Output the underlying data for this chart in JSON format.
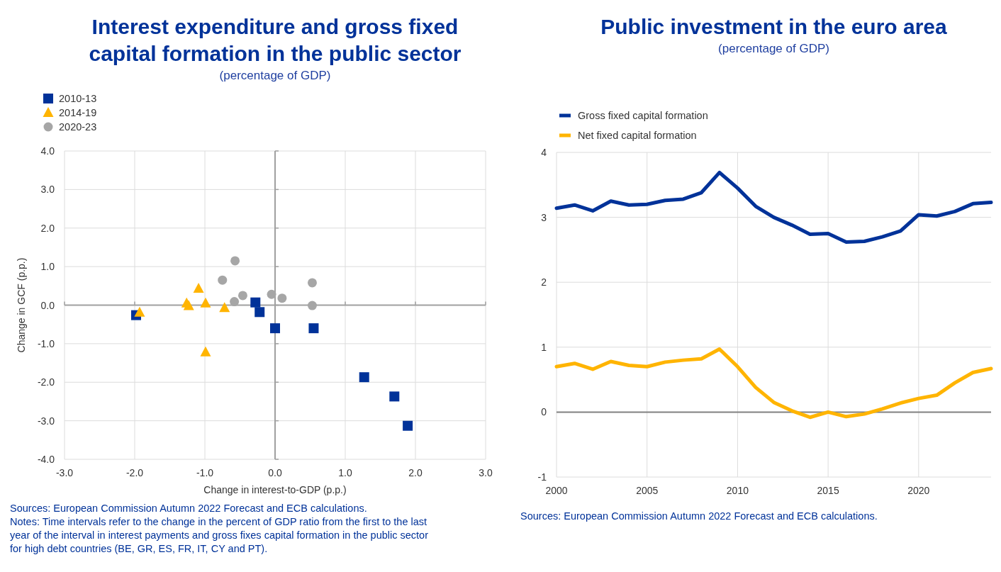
{
  "chart_data": [
    {
      "type": "scatter",
      "title": "Interest expenditure and gross fixed capital formation in the public sector",
      "subtitle": "(percentage of GDP)",
      "xlabel": "Change in interest-to-GDP (p.p.)",
      "ylabel": "Change in GCF (p.p.)",
      "xlim": [
        -3,
        3
      ],
      "xticks": [
        {
          "value": -3,
          "label": "-3.0"
        },
        {
          "value": -2,
          "label": "-2.0"
        },
        {
          "value": -1,
          "label": "-1.0"
        },
        {
          "value": 0,
          "label": "0.0"
        },
        {
          "value": 1,
          "label": "1.0"
        },
        {
          "value": 2,
          "label": "2.0"
        },
        {
          "value": 3,
          "label": "3.0"
        }
      ],
      "ylim": [
        -4,
        4
      ],
      "yticks": [
        {
          "value": -4,
          "label": "-4.0"
        },
        {
          "value": -3,
          "label": "-3.0"
        },
        {
          "value": -2,
          "label": "-2.0"
        },
        {
          "value": -1,
          "label": "-1.0"
        },
        {
          "value": 0,
          "label": "0.0"
        },
        {
          "value": 1,
          "label": "1.0"
        },
        {
          "value": 2,
          "label": "2.0"
        },
        {
          "value": 3,
          "label": "3.0"
        },
        {
          "value": 4,
          "label": "4.0"
        }
      ],
      "grid": true,
      "legend": "top left",
      "series": [
        {
          "name": "2010-13",
          "color": "#003299",
          "marker": "square",
          "x": [
            -1.98,
            -0.28,
            -0.22,
            0.0,
            0.55,
            1.27,
            1.7,
            1.89
          ],
          "values": [
            -0.26,
            0.07,
            -0.18,
            -0.6,
            -0.6,
            -1.87,
            -2.37,
            -3.13
          ]
        },
        {
          "name": "2014-19",
          "color": "#ffb400",
          "marker": "triangle",
          "x": [
            -1.93,
            -1.26,
            -1.23,
            -1.09,
            -0.99,
            -0.72,
            -0.99
          ],
          "values": [
            -0.19,
            0.05,
            -0.02,
            0.43,
            0.05,
            -0.07,
            -1.22
          ]
        },
        {
          "name": "2020-23",
          "color": "#a6a6a6",
          "marker": "circle",
          "x": [
            -0.57,
            -0.75,
            -0.58,
            -0.46,
            -0.05,
            0.1,
            0.53,
            0.53
          ],
          "values": [
            1.15,
            0.65,
            0.09,
            0.25,
            0.28,
            0.18,
            0.58,
            -0.01
          ]
        }
      ],
      "annotations": [
        "Sources: European Commission Autumn 2022 Forecast and ECB calculations.",
        "Notes: Time intervals refer to the change in the percent of GDP ratio from the first to the last year of the interval in interest payments and gross fixes capital formation in the public sector for high debt countries (BE, GR, ES, FR, IT, CY and PT)."
      ]
    },
    {
      "type": "line",
      "title": "Public investment in the euro area",
      "subtitle": "(percentage of GDP)",
      "x": [
        2000,
        2001,
        2002,
        2003,
        2004,
        2005,
        2006,
        2007,
        2008,
        2009,
        2010,
        2011,
        2012,
        2013,
        2014,
        2015,
        2016,
        2017,
        2018,
        2019,
        2020,
        2021,
        2022,
        2023,
        2024
      ],
      "xlim": [
        2000,
        2024
      ],
      "xticks": [
        2000,
        2005,
        2010,
        2015,
        2020
      ],
      "ylim": [
        -1,
        4
      ],
      "yticks": [
        -1,
        0,
        1,
        2,
        3,
        4
      ],
      "grid": true,
      "legend": "top left",
      "marker": "none",
      "line_style": "solid",
      "ref_lines": [
        {
          "axis": "y",
          "value": 0,
          "color": "#808080"
        }
      ],
      "series": [
        {
          "name": "Gross fixed capital formation",
          "color": "#003299",
          "values": [
            3.14,
            3.19,
            3.1,
            3.25,
            3.19,
            3.2,
            3.26,
            3.28,
            3.38,
            3.69,
            3.45,
            3.17,
            3.0,
            2.88,
            2.74,
            2.75,
            2.62,
            2.63,
            2.7,
            2.79,
            3.04,
            3.02,
            3.09,
            3.21,
            3.23
          ]
        },
        {
          "name": "Net fixed capital formation",
          "color": "#ffb400",
          "values": [
            0.7,
            0.75,
            0.66,
            0.78,
            0.72,
            0.7,
            0.77,
            0.8,
            0.82,
            0.97,
            0.7,
            0.38,
            0.15,
            0.02,
            -0.08,
            0.0,
            -0.07,
            -0.03,
            0.05,
            0.14,
            0.21,
            0.26,
            0.45,
            0.61,
            0.67
          ]
        }
      ],
      "annotations": [
        "Sources: European Commission Autumn 2022 Forecast and ECB calculations."
      ]
    }
  ]
}
